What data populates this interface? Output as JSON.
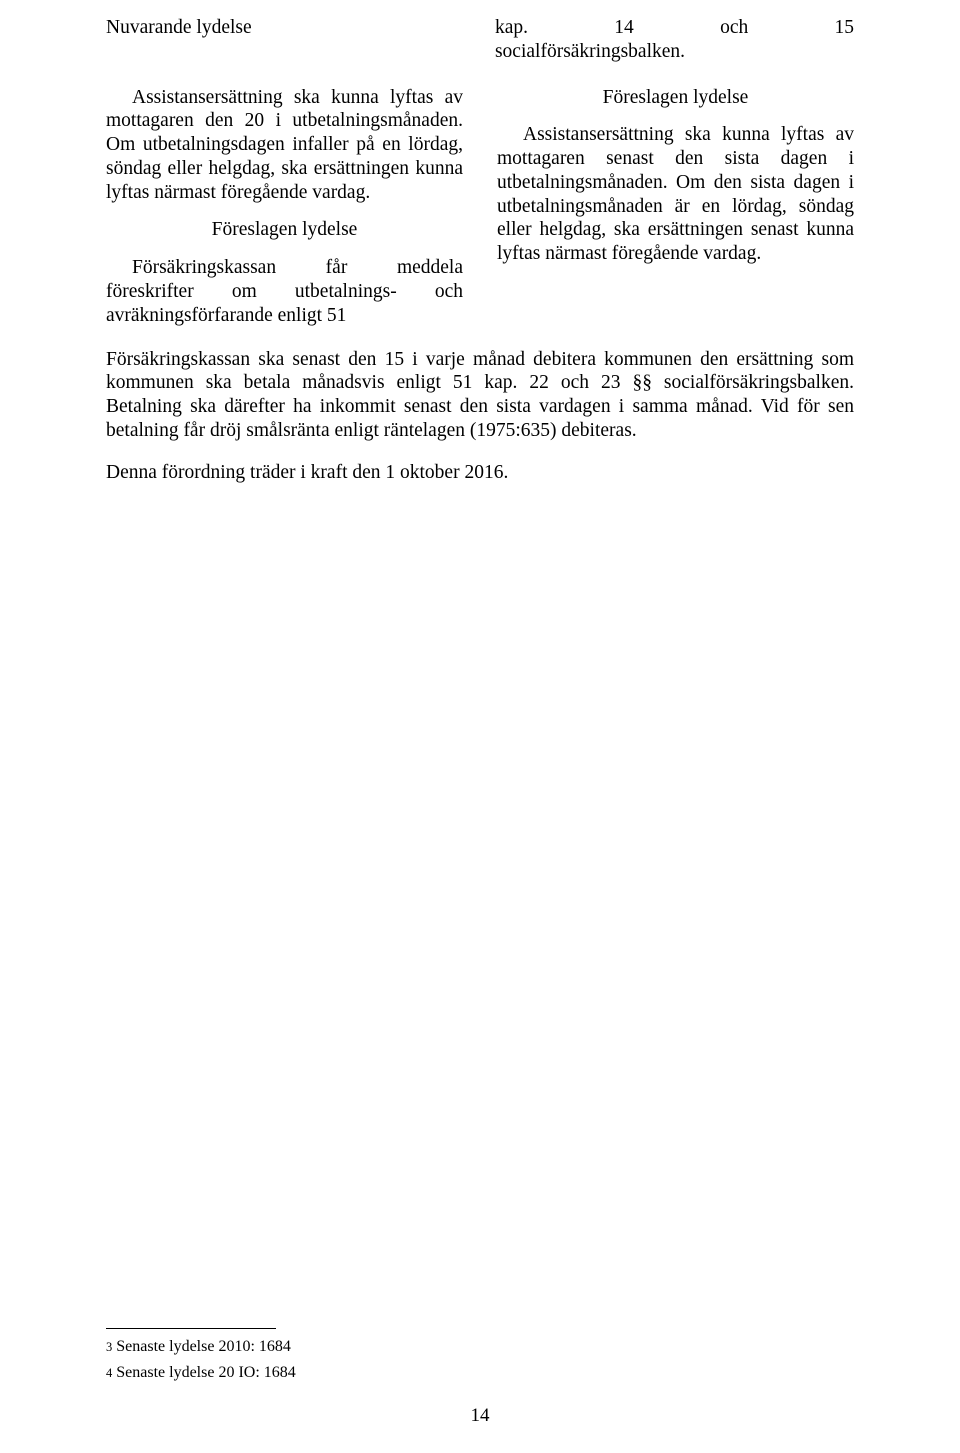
{
  "top": {
    "left_label": "Nuvarande lydelse",
    "right_line1_left": "kap.",
    "right_line1_mid": "14",
    "right_line1_mid2": "och",
    "right_line1_right": "15",
    "right_line2": "socialförsäkringsbalken."
  },
  "leftCol": {
    "p1": "Assistansersättning ska kunna lyftas av mottagaren den 20 i utbetalningsmånaden. Om utbetalningsdagen infaller på en lördag, söndag eller helgdag, ska ersättningen kunna lyftas närmast föregående vardag.",
    "heading": "Föreslagen lydelse",
    "p2": "Försäkringskassan får meddela föreskrifter om utbetalnings- och avräkningsförfarande enligt 51"
  },
  "rightCol": {
    "heading": "Föreslagen lydelse",
    "p1": "Assistansersättning ska kunna lyftas av mottagaren senast den sista dagen i utbetalningsmånaden. Om den sista dagen i utbetalningsmånaden är en lördag, söndag eller helgdag, ska ersättningen senast kunna lyftas närmast föregående vardag."
  },
  "full": {
    "p1": "Försäkringskassan ska senast den 15 i varje månad debitera kommunen den ersättning som kommunen ska betala månadsvis enligt 51 kap. 22 och 23 §§ socialförsäkringsbalken. Betalning ska därefter ha inkommit senast den sista vardagen i samma månad. Vid för sen betalning får dröj smålsränta enligt räntelagen (1975:635) debiteras.",
    "p2": "Denna förordning träder i kraft den 1 oktober 2016."
  },
  "footnotes": {
    "f1_num": "3",
    "f1_text": "Senaste lydelse 2010: 1684",
    "f2_num": "4",
    "f2_text": "Senaste lydelse 20 IO: 1684"
  },
  "pageNumber": "14",
  "colors": {
    "background": "#ffffff",
    "text": "#000000",
    "rule": "#000000"
  },
  "typography": {
    "body_font": "Times New Roman",
    "body_size_pt": 15,
    "footnote_size_pt": 12,
    "line_height": 1.22
  }
}
